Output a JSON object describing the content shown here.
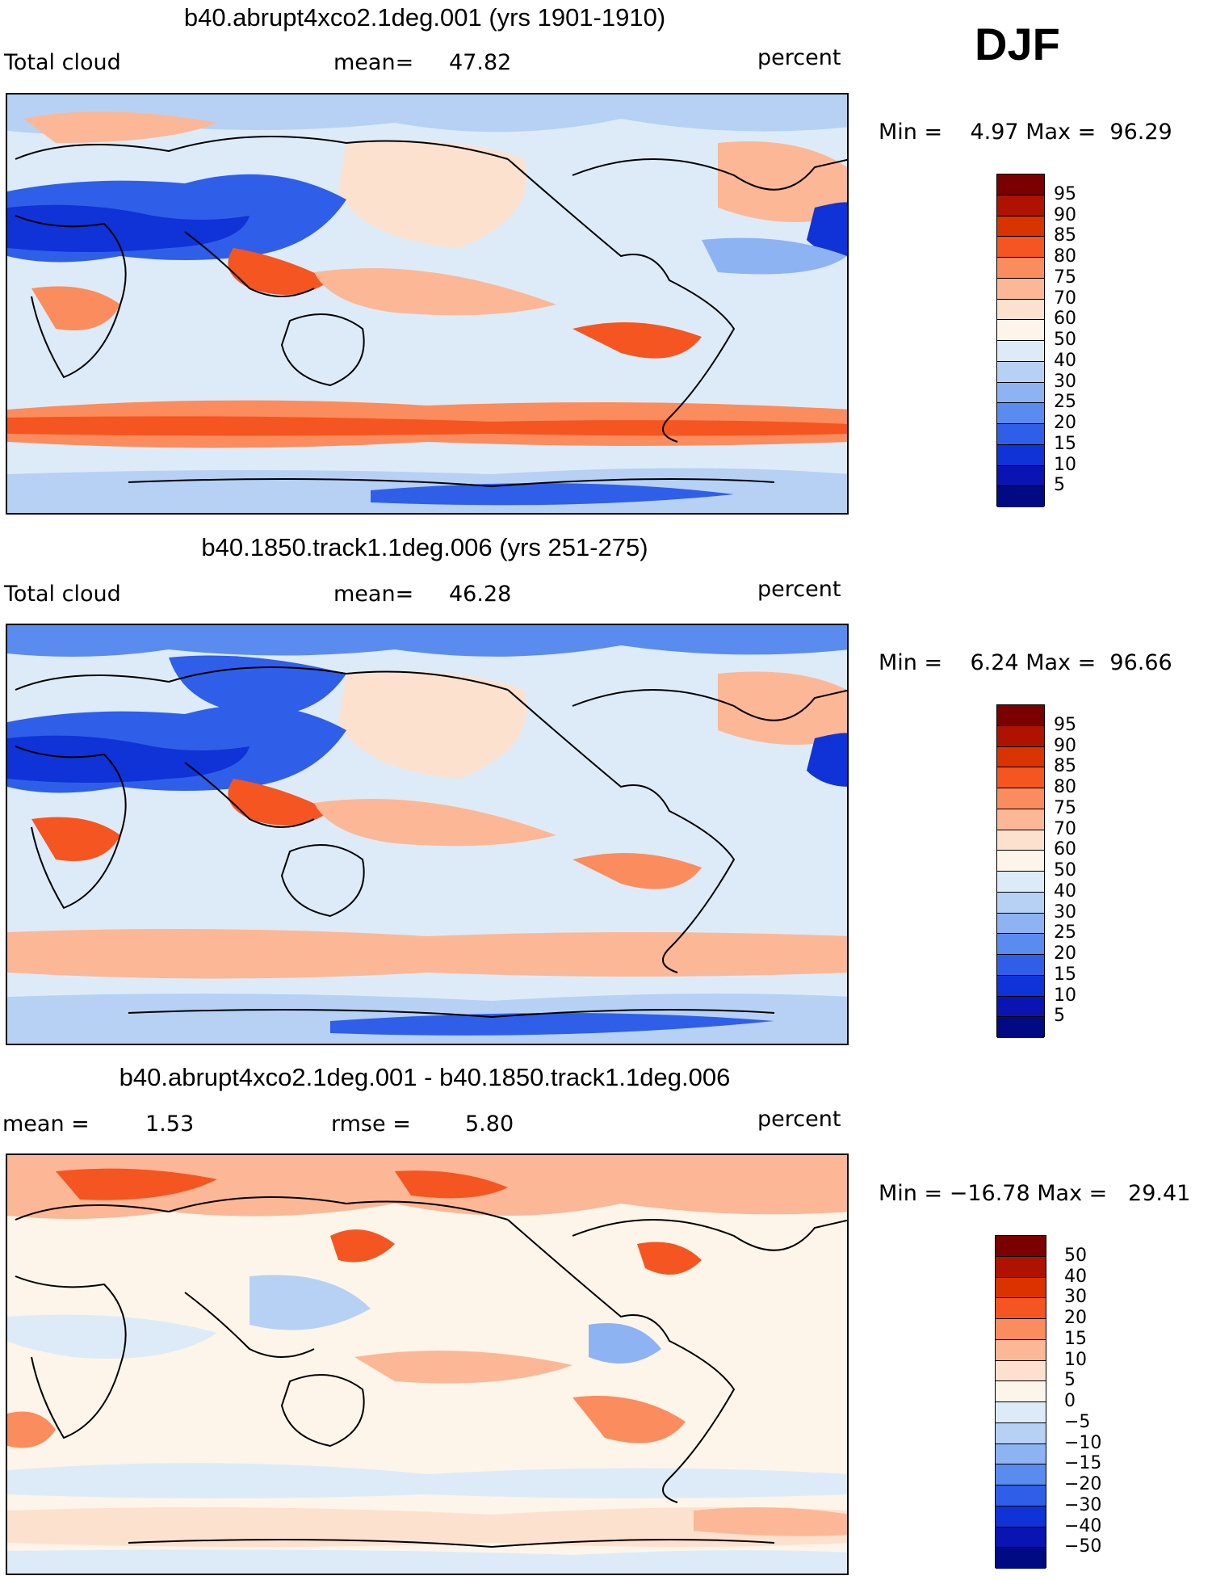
{
  "season": "DJF",
  "panels": [
    {
      "title": "b40.abrupt4xco2.1deg.001 (yrs 1901-1910)",
      "left_label": "Total cloud",
      "mean_label": "mean=",
      "mean_value": "47.82",
      "units": "percent",
      "min_label": "Min =",
      "min_value": "4.97",
      "max_label": "Max =",
      "max_value": "96.29",
      "scale": "abs"
    },
    {
      "title": "b40.1850.track1.1deg.006 (yrs 251-275)",
      "left_label": "Total cloud",
      "mean_label": "mean=",
      "mean_value": "46.28",
      "units": "percent",
      "min_label": "Min =",
      "min_value": "6.24",
      "max_label": "Max =",
      "max_value": "96.66",
      "scale": "abs"
    },
    {
      "title": "b40.abrupt4xco2.1deg.001 - b40.1850.track1.1deg.006",
      "mean_label": "mean =",
      "mean_value": "1.53",
      "rmse_label": "rmse =",
      "rmse_value": "5.80",
      "units": "percent",
      "min_label": "Min =",
      "min_value": "−16.78",
      "max_label": "Max =",
      "max_value": "29.41",
      "scale": "diff"
    }
  ],
  "colorbars": {
    "abs": {
      "levels": [
        "95",
        "90",
        "85",
        "80",
        "75",
        "70",
        "60",
        "50",
        "40",
        "30",
        "25",
        "20",
        "15",
        "10",
        "5"
      ],
      "colors": [
        "#7b0000",
        "#b01200",
        "#d93300",
        "#f55520",
        "#fb8c5e",
        "#fcb796",
        "#fde1cf",
        "#fdf5ea",
        "#ddebf8",
        "#b7d1f5",
        "#8db3f3",
        "#5a8cf0",
        "#2f5fe8",
        "#0f33d6",
        "#0a14b3",
        "#000a82"
      ]
    },
    "diff": {
      "levels": [
        "50",
        "40",
        "30",
        "20",
        "15",
        "10",
        "5",
        "0",
        "−5",
        "−10",
        "−15",
        "−20",
        "−30",
        "−40",
        "−50"
      ],
      "colors": [
        "#7b0000",
        "#b01200",
        "#d93300",
        "#f55520",
        "#fb8c5e",
        "#fcb796",
        "#fde1cf",
        "#fdf5ea",
        "#ddebf8",
        "#b7d1f5",
        "#8db3f3",
        "#5a8cf0",
        "#2f5fe8",
        "#0f33d6",
        "#0a14b3",
        "#000a82"
      ]
    }
  }
}
